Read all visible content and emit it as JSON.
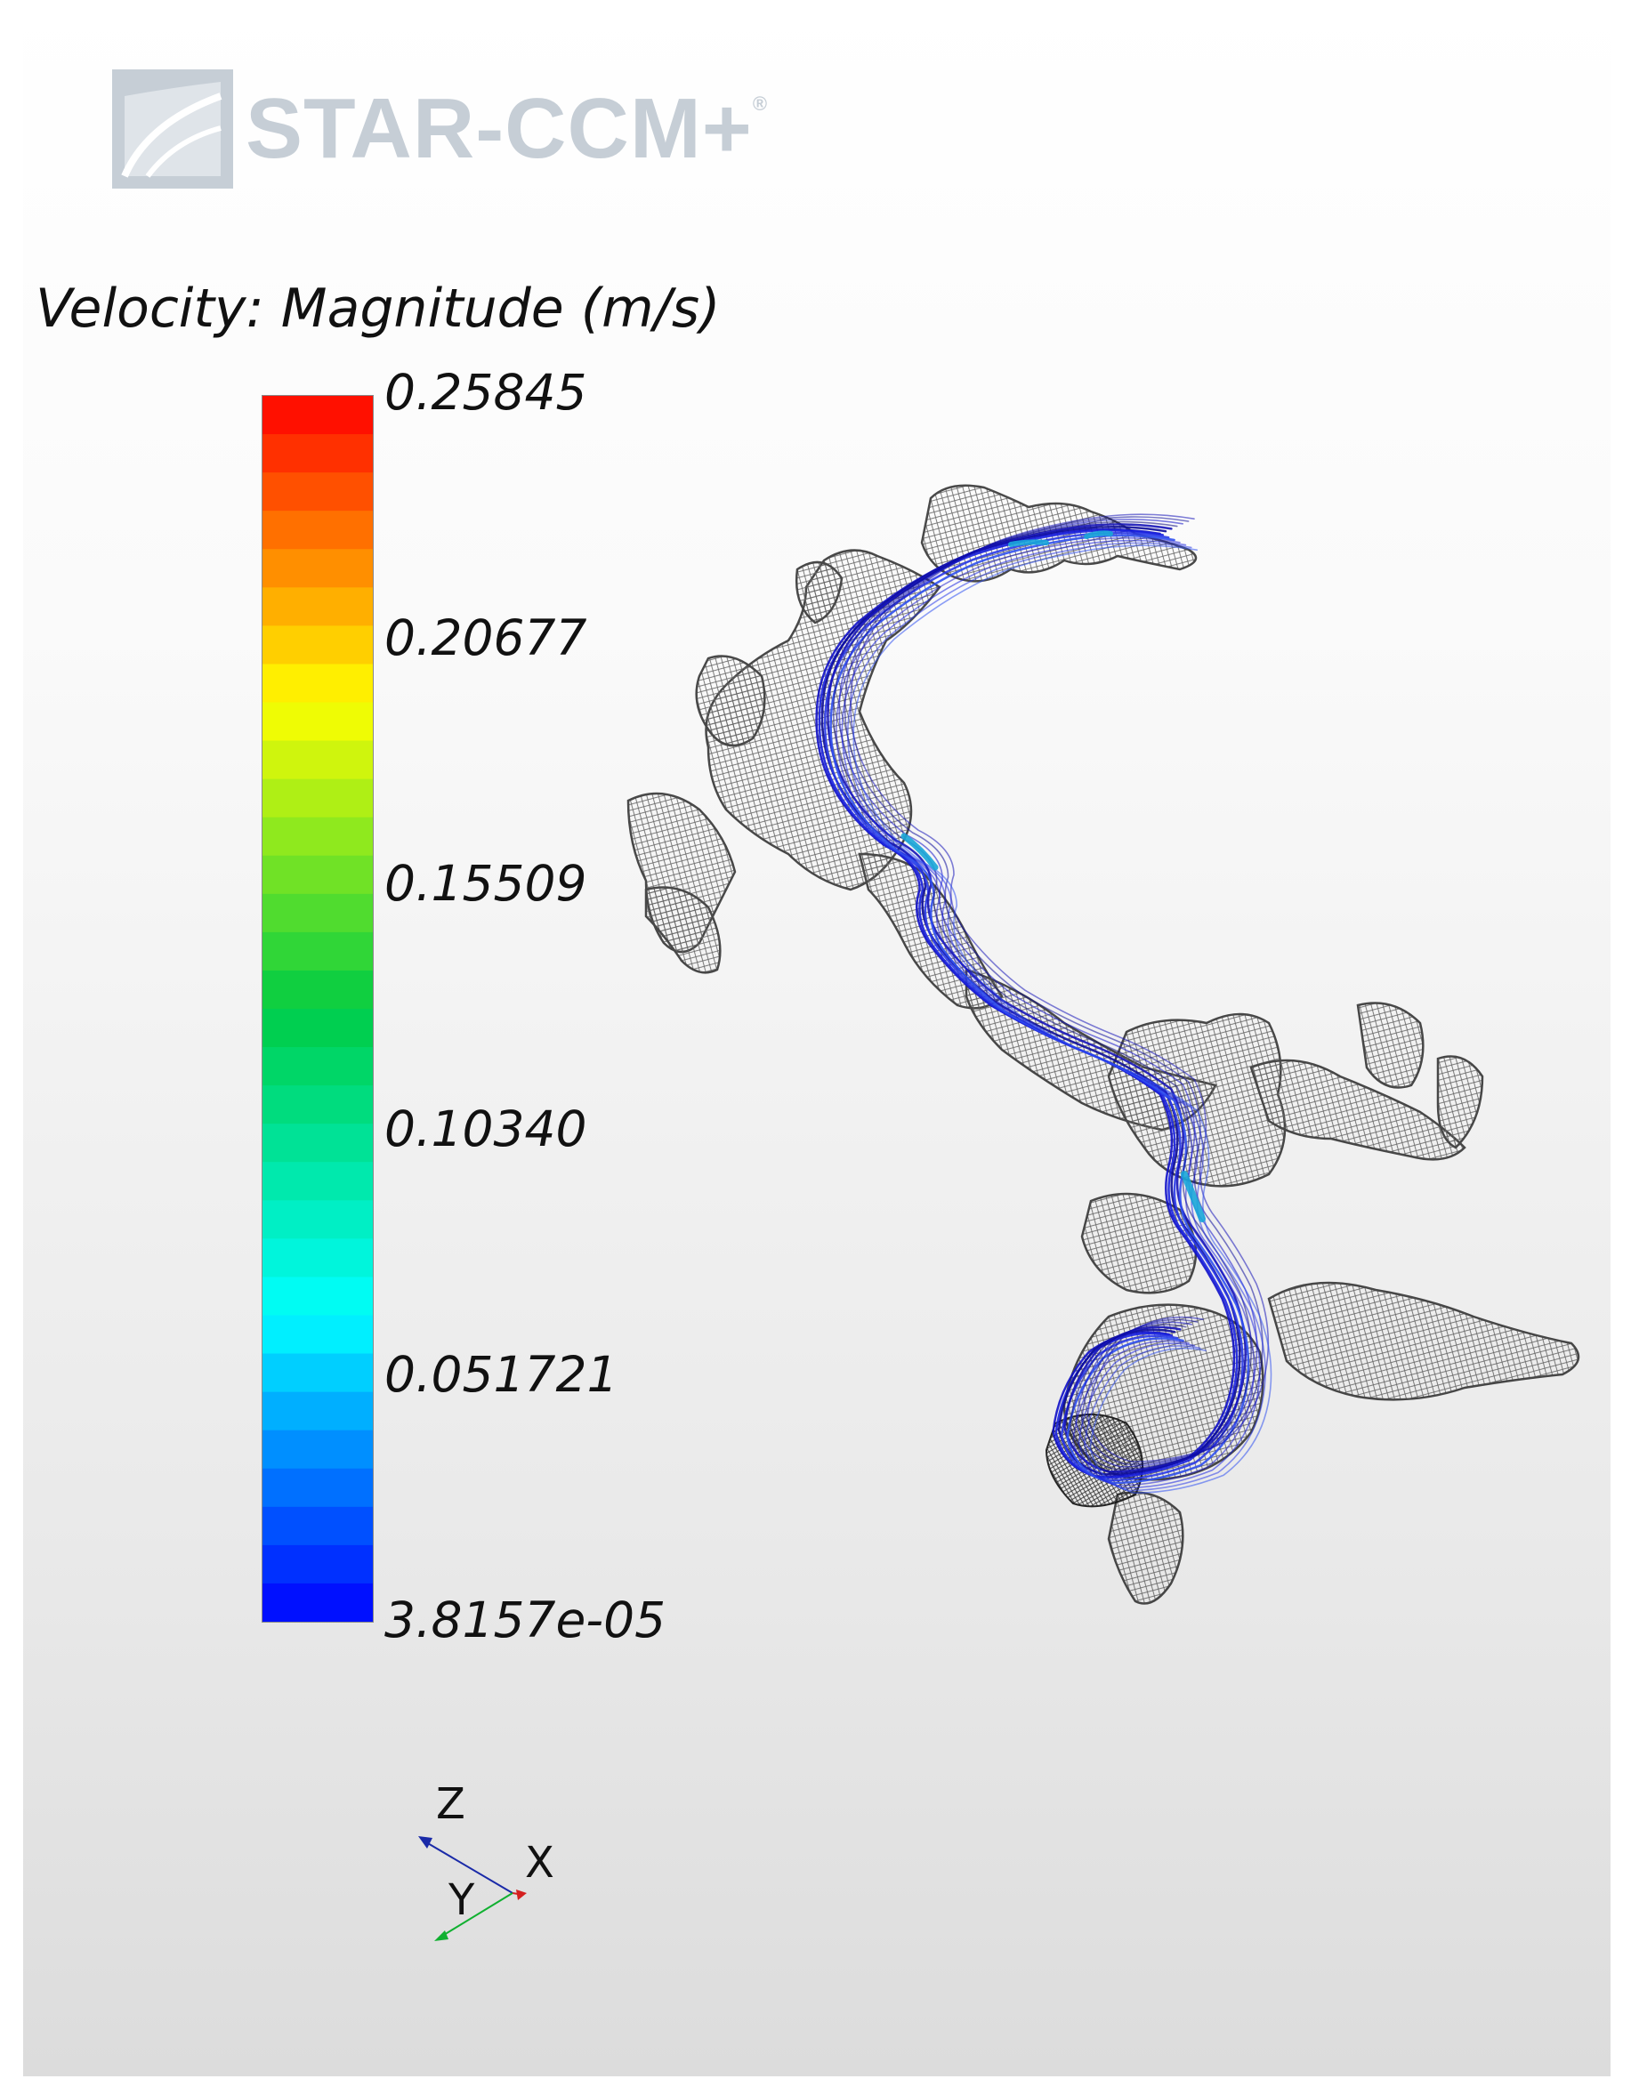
{
  "logo": {
    "text": "STAR-CCM+",
    "mark": "®",
    "color": "#c6ced6"
  },
  "legend": {
    "title": "Velocity: Magnitude (m/s)",
    "ticks": [
      "0.25845",
      "0.20677",
      "0.15509",
      "0.10340",
      "0.051721",
      "3.8157e-05"
    ],
    "colormap": [
      "#ff0000",
      "#ffff00",
      "#00cc44",
      "#00ffff",
      "#0000ff"
    ]
  },
  "triad": {
    "z_label": "Z",
    "x_label": "X",
    "y_label": "Y",
    "z_color": "#1a2aa8",
    "x_color": "#d42020",
    "y_color": "#10b030"
  }
}
